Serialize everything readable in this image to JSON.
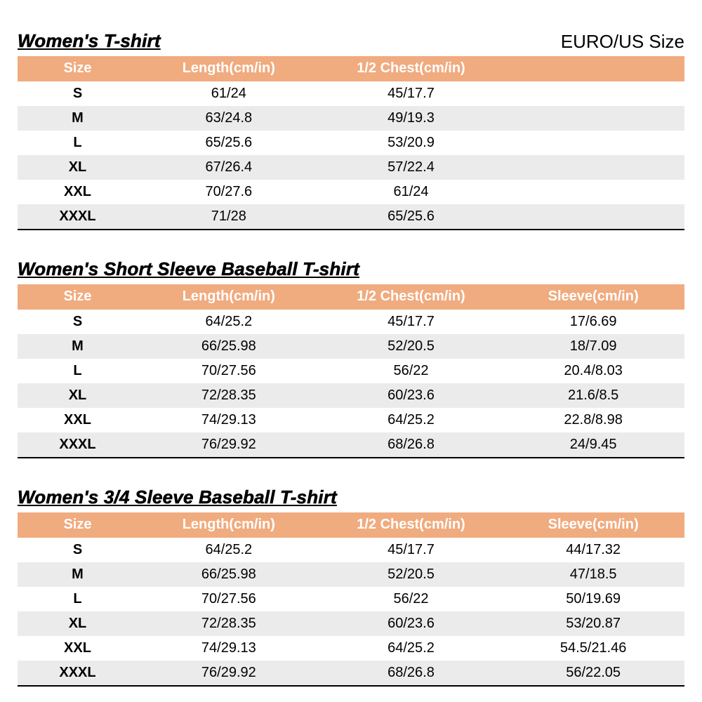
{
  "size_standard": "EURO/US Size",
  "colors": {
    "header_bg": "#F0AB7F",
    "header_text": "#FFFFFF",
    "stripe": "#EBEBEB",
    "text": "#000000"
  },
  "tables": [
    {
      "title": "Women's T-shirt",
      "columns": [
        "Size",
        "Length(cm/in)",
        "1/2 Chest(cm/in)"
      ],
      "rows": [
        [
          "S",
          "61/24",
          "45/17.7"
        ],
        [
          "M",
          "63/24.8",
          "49/19.3"
        ],
        [
          "L",
          "65/25.6",
          "53/20.9"
        ],
        [
          "XL",
          "67/26.4",
          "57/22.4"
        ],
        [
          "XXL",
          "70/27.6",
          "61/24"
        ],
        [
          "XXXL",
          "71/28",
          "65/25.6"
        ]
      ]
    },
    {
      "title": "Women's Short Sleeve Baseball T-shirt",
      "columns": [
        "Size",
        "Length(cm/in)",
        "1/2 Chest(cm/in)",
        "Sleeve(cm/in)"
      ],
      "rows": [
        [
          "S",
          "64/25.2",
          "45/17.7",
          "17/6.69"
        ],
        [
          "M",
          "66/25.98",
          "52/20.5",
          "18/7.09"
        ],
        [
          "L",
          "70/27.56",
          "56/22",
          "20.4/8.03"
        ],
        [
          "XL",
          "72/28.35",
          "60/23.6",
          "21.6/8.5"
        ],
        [
          "XXL",
          "74/29.13",
          "64/25.2",
          "22.8/8.98"
        ],
        [
          "XXXL",
          "76/29.92",
          "68/26.8",
          "24/9.45"
        ]
      ]
    },
    {
      "title": "Women's 3/4 Sleeve Baseball T-shirt",
      "columns": [
        "Size",
        "Length(cm/in)",
        "1/2 Chest(cm/in)",
        "Sleeve(cm/in)"
      ],
      "rows": [
        [
          "S",
          "64/25.2",
          "45/17.7",
          "44/17.32"
        ],
        [
          "M",
          "66/25.98",
          "52/20.5",
          "47/18.5"
        ],
        [
          "L",
          "70/27.56",
          "56/22",
          "50/19.69"
        ],
        [
          "XL",
          "72/28.35",
          "60/23.6",
          "53/20.87"
        ],
        [
          "XXL",
          "74/29.13",
          "64/25.2",
          "54.5/21.46"
        ],
        [
          "XXXL",
          "76/29.92",
          "68/26.8",
          "56/22.05"
        ]
      ]
    }
  ]
}
